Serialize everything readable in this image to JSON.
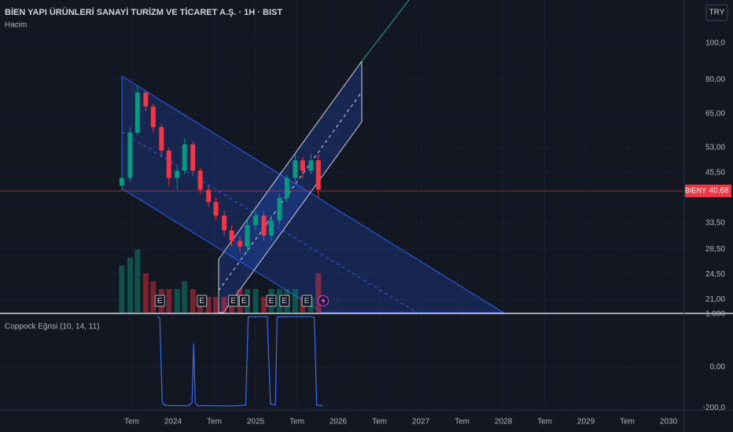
{
  "chart_data": [
    {
      "type": "candlestick",
      "title": "BİEN YAPI ÜRÜNLERİ SANAYİ TURİZM VE TİCARET A.Ş. · 1H · BIST",
      "subtitle": "Hacim",
      "currency": "TRY",
      "x": [
        2023.38,
        2023.48,
        2023.57,
        2023.67,
        2023.76,
        2023.86,
        2023.95,
        2024.05,
        2024.14,
        2024.24,
        2024.33,
        2024.43,
        2024.52,
        2024.62,
        2024.71,
        2024.81,
        2024.9,
        2025.0,
        2025.1,
        2025.19,
        2025.29,
        2025.38,
        2025.48,
        2025.57,
        2025.67,
        2025.76
      ],
      "open": [
        42,
        44,
        58,
        74,
        68,
        60,
        52,
        44,
        46,
        54,
        46,
        41,
        38,
        35,
        32,
        30,
        29,
        33,
        35,
        31,
        34,
        39,
        44,
        49,
        46,
        49
      ],
      "high": [
        45,
        60,
        77,
        75,
        69,
        61,
        53,
        47,
        56,
        55,
        47,
        42,
        39,
        36,
        33,
        31,
        34,
        36,
        36,
        35,
        40,
        45,
        51,
        50,
        51,
        51
      ],
      "low": [
        41,
        43,
        57,
        66,
        58,
        50,
        42,
        41,
        45,
        45,
        40,
        37,
        34,
        31,
        29,
        28,
        28,
        32,
        30,
        30,
        33,
        38,
        43,
        44,
        45,
        39
      ],
      "close": [
        44,
        58,
        74,
        68,
        60,
        52,
        44,
        46,
        54,
        46,
        41,
        38,
        35,
        32,
        30,
        29,
        33,
        35,
        31,
        34,
        39,
        44,
        49,
        46,
        49,
        41
      ],
      "volume": [
        6,
        7,
        8,
        5,
        4,
        3,
        3,
        3,
        4,
        3,
        2,
        2,
        2,
        2,
        2,
        3,
        3,
        3,
        2,
        3,
        3,
        3,
        3,
        2,
        2,
        5
      ],
      "up_color": "#089981",
      "down_color": "#f23645",
      "log_scale": true,
      "ylim": [
        19.4,
        130
      ],
      "yticks": [
        {
          "value": 100,
          "label": "100,0"
        },
        {
          "value": 80,
          "label": "80,00"
        },
        {
          "value": 65,
          "label": "65,00"
        },
        {
          "value": 53,
          "label": "53,00"
        },
        {
          "value": 45.5,
          "label": "45,50"
        },
        {
          "value": 33.5,
          "label": "33,50"
        },
        {
          "value": 28.5,
          "label": "28,50"
        },
        {
          "value": 24.5,
          "label": "24,50"
        },
        {
          "value": 21,
          "label": "21,00"
        }
      ],
      "xlim": [
        2021.905,
        2030.19
      ],
      "xticks": [
        {
          "value": 2023.5,
          "label": "Tem"
        },
        2024,
        {
          "value": 2024.5,
          "label": "Tem"
        },
        2025,
        {
          "value": 2025.5,
          "label": "Tem"
        },
        2026,
        {
          "value": 2026.5,
          "label": "Tem"
        },
        2027,
        {
          "value": 2027.5,
          "label": "Tem"
        },
        2028,
        {
          "value": 2028.5,
          "label": "Tem"
        },
        2029,
        {
          "value": 2029.5,
          "label": "Tem"
        },
        2030
      ],
      "last_price": {
        "symbol": "BIENY",
        "value": 40.68,
        "label": "40,68"
      },
      "earnings_markers": {
        "label": "E",
        "x": [
          2023.84,
          2024.35,
          2024.73,
          2024.86,
          2025.19,
          2025.35,
          2025.62
        ]
      }
    },
    {
      "type": "line",
      "title": "Coppock Eğrisi (10, 14, 11)",
      "color": "#3d6bf0",
      "y_scale": "symlog",
      "x": [
        2023.81,
        2023.84,
        2023.87,
        2023.9,
        2024.0,
        2024.19,
        2024.23,
        2024.25,
        2024.27,
        2024.3,
        2024.76,
        2024.88,
        2024.91,
        2024.95,
        2025.14,
        2025.18,
        2025.24,
        2025.26,
        2025.33,
        2025.67,
        2025.71,
        2025.74,
        2025.81
      ],
      "values": [
        720,
        600,
        -100,
        -140,
        -150,
        -150,
        -100,
        20,
        -100,
        -150,
        -155,
        -140,
        700,
        720,
        720,
        -120,
        -130,
        700,
        720,
        720,
        650,
        -140,
        -150
      ],
      "ylim": [
        -215,
        1000
      ],
      "yticks": [
        {
          "value": 1000,
          "label": "1.000"
        },
        {
          "value": 0,
          "label": "0,00"
        },
        {
          "value": -200,
          "label": "-200,0"
        }
      ]
    }
  ]
}
